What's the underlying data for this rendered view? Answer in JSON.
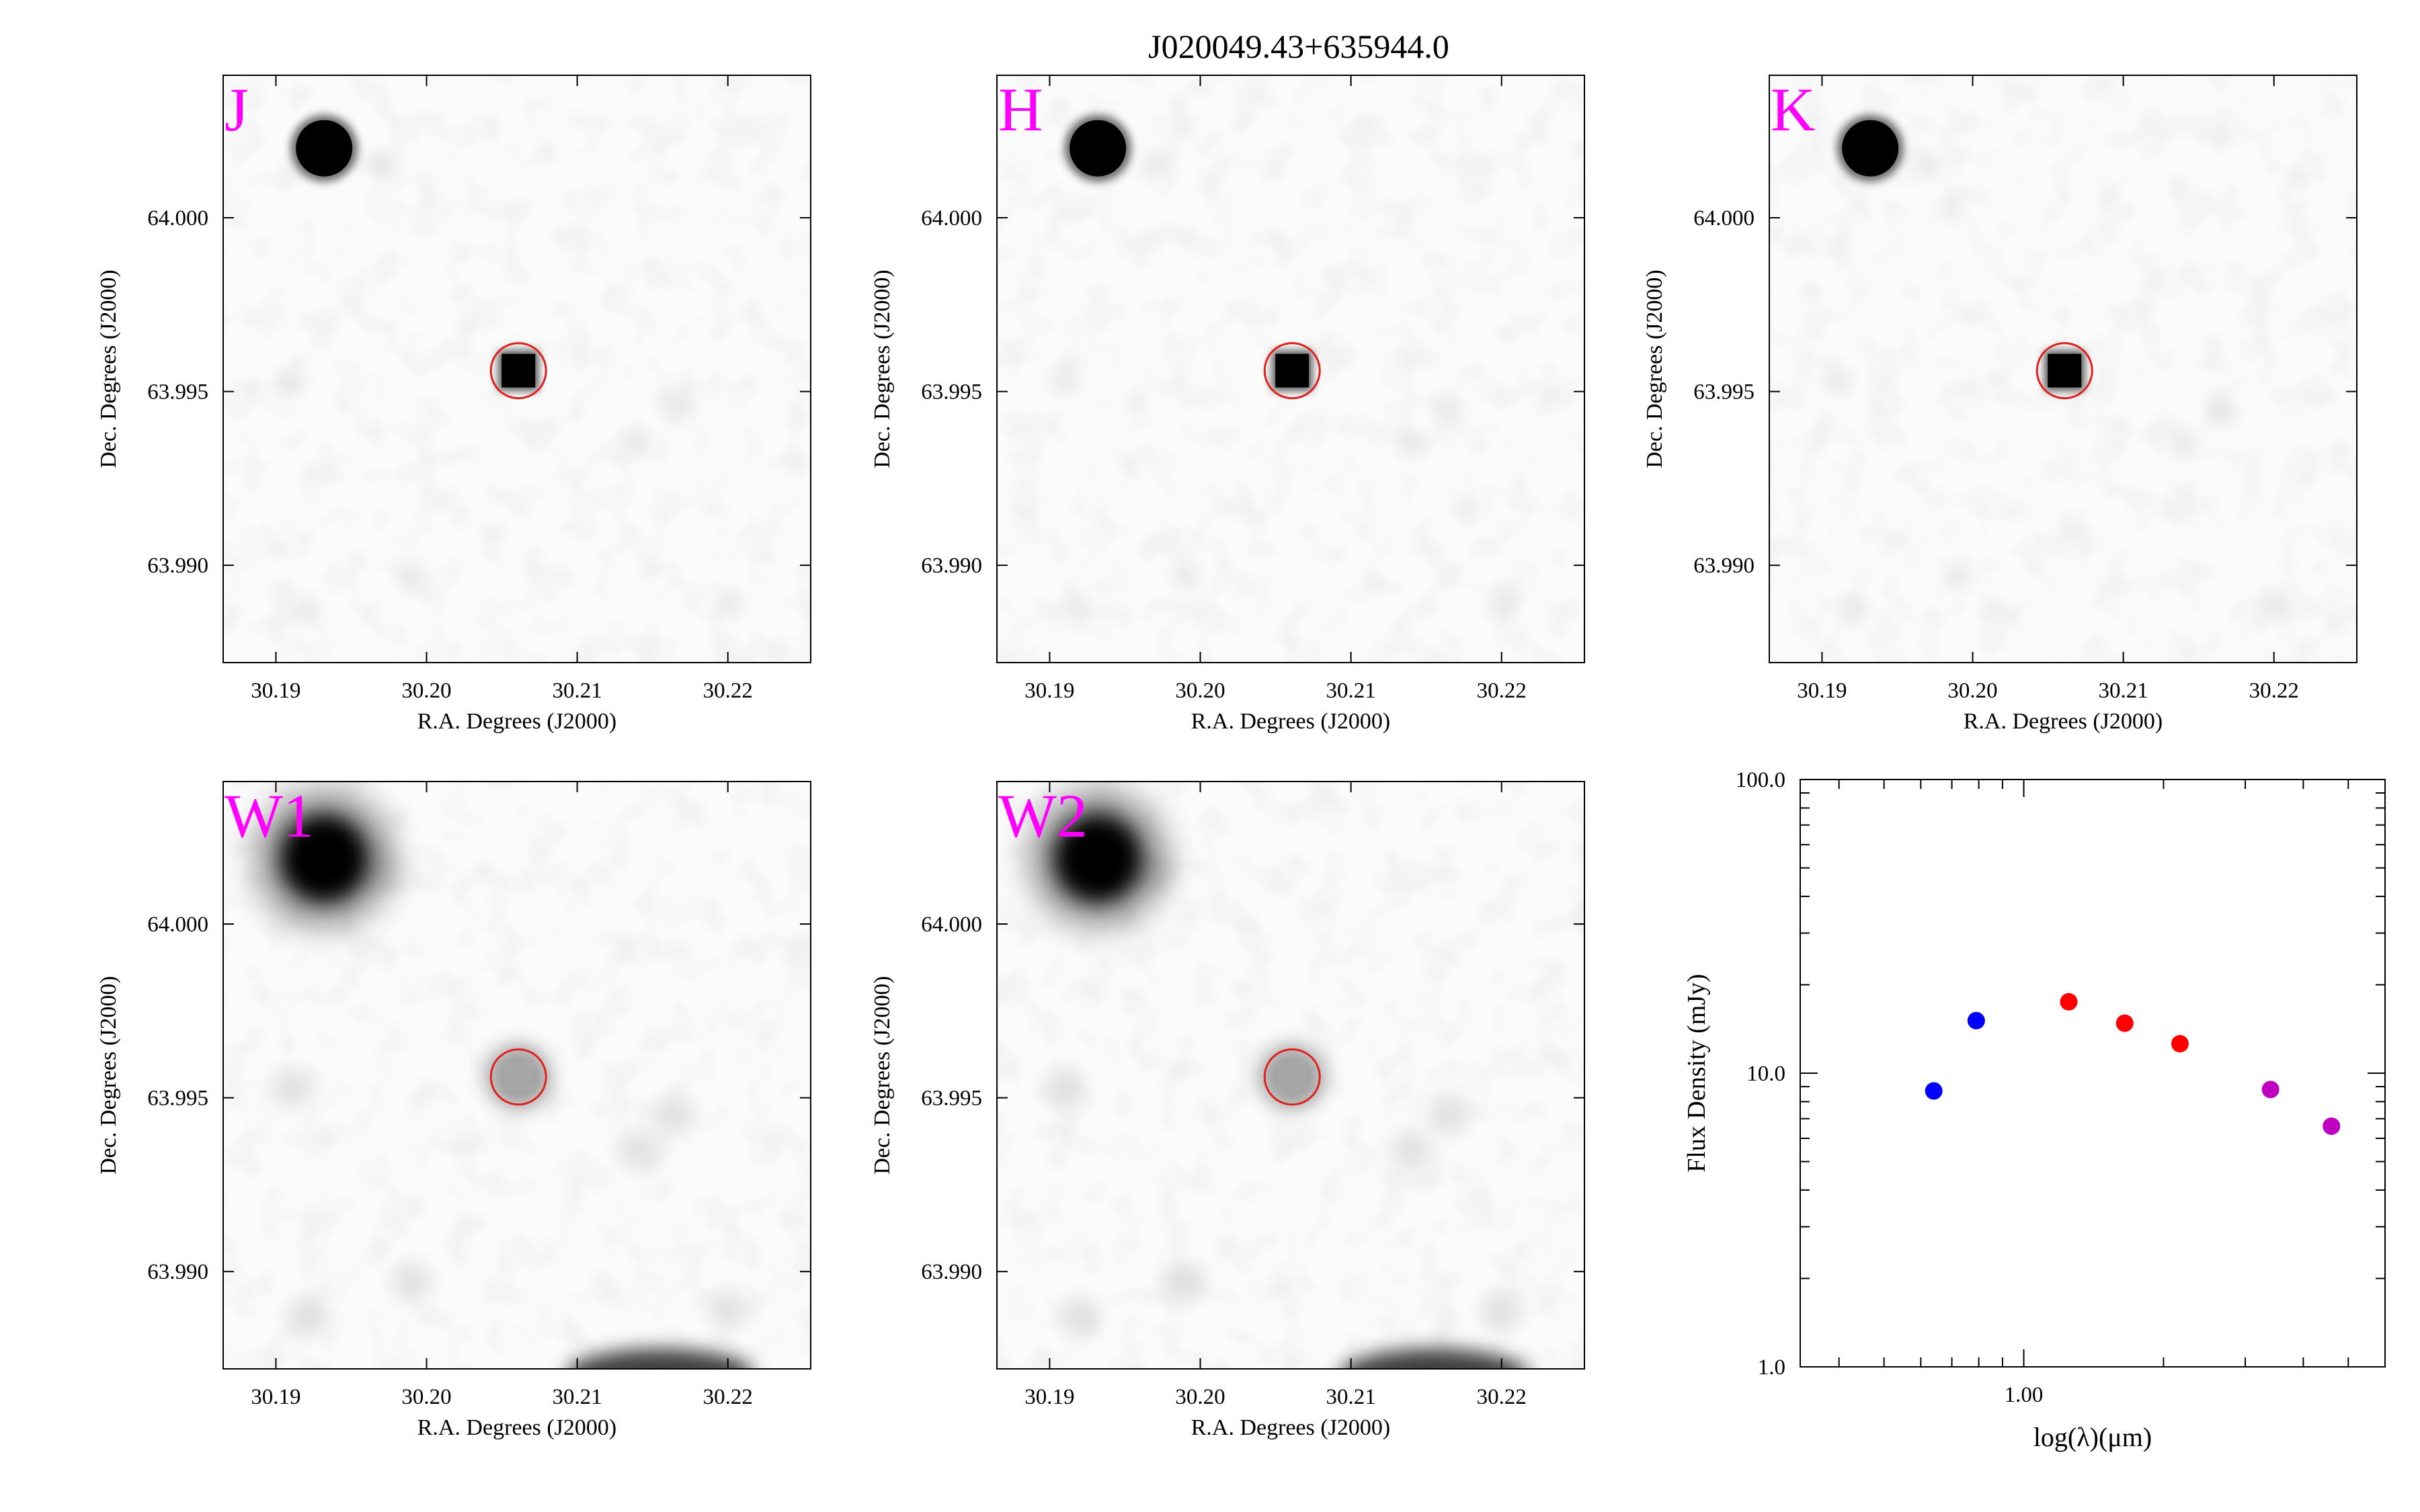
{
  "figure": {
    "title": "J020049.43+635944.0"
  },
  "colors": {
    "band_label": "#ff00ff",
    "aperture": "#e0201c",
    "pixel_black": "#000000"
  },
  "image_axes": {
    "xlabel": "R.A. Degrees (J2000)",
    "ylabel": "Dec. Degrees (J2000)",
    "x_range": [
      30.1865,
      30.2255
    ],
    "y_range": [
      63.9872,
      64.0041
    ],
    "x_ticks": [
      {
        "v": 30.19,
        "label": "30.19"
      },
      {
        "v": 30.2,
        "label": "30.20"
      },
      {
        "v": 30.21,
        "label": "30.21"
      },
      {
        "v": 30.22,
        "label": "30.22"
      }
    ],
    "y_ticks": [
      {
        "v": 63.99,
        "label": "63.990"
      },
      {
        "v": 63.995,
        "label": "63.995"
      },
      {
        "v": 64.0,
        "label": "64.000"
      }
    ]
  },
  "panels": [
    {
      "band": "J",
      "target": {
        "ra": 30.2061,
        "dec": 63.9956
      }
    },
    {
      "band": "H",
      "target": {
        "ra": 30.2061,
        "dec": 63.9956
      }
    },
    {
      "band": "K",
      "target": {
        "ra": 30.2061,
        "dec": 63.9956
      }
    },
    {
      "band": "W1",
      "target": {
        "ra": 30.2061,
        "dec": 63.9956
      }
    },
    {
      "band": "W2",
      "target": {
        "ra": 30.2061,
        "dec": 63.9956
      }
    }
  ],
  "chart_data": {
    "type": "scatter",
    "xlabel": "log(λ)(μm)",
    "ylabel": "Flux Density (mJy)",
    "x_scale": "log",
    "y_scale": "log",
    "xlim": [
      0.33,
      6.0
    ],
    "ylim": [
      1.0,
      100.0
    ],
    "x_ticks": [
      {
        "v": 1.0,
        "label": "1.00"
      }
    ],
    "y_ticks": [
      {
        "v": 1.0,
        "label": "1.0"
      },
      {
        "v": 10.0,
        "label": "10.0"
      },
      {
        "v": 100.0,
        "label": "100.0"
      }
    ],
    "series": [
      {
        "color": "#0000ff",
        "points": [
          {
            "x": 0.64,
            "y": 8.7
          },
          {
            "x": 0.79,
            "y": 15.1
          }
        ]
      },
      {
        "color": "#ff0000",
        "points": [
          {
            "x": 1.25,
            "y": 17.5
          },
          {
            "x": 1.65,
            "y": 14.8
          },
          {
            "x": 2.17,
            "y": 12.6
          }
        ]
      },
      {
        "color": "#c000c0",
        "points": [
          {
            "x": 3.4,
            "y": 8.8
          },
          {
            "x": 4.6,
            "y": 6.6
          }
        ]
      }
    ]
  }
}
